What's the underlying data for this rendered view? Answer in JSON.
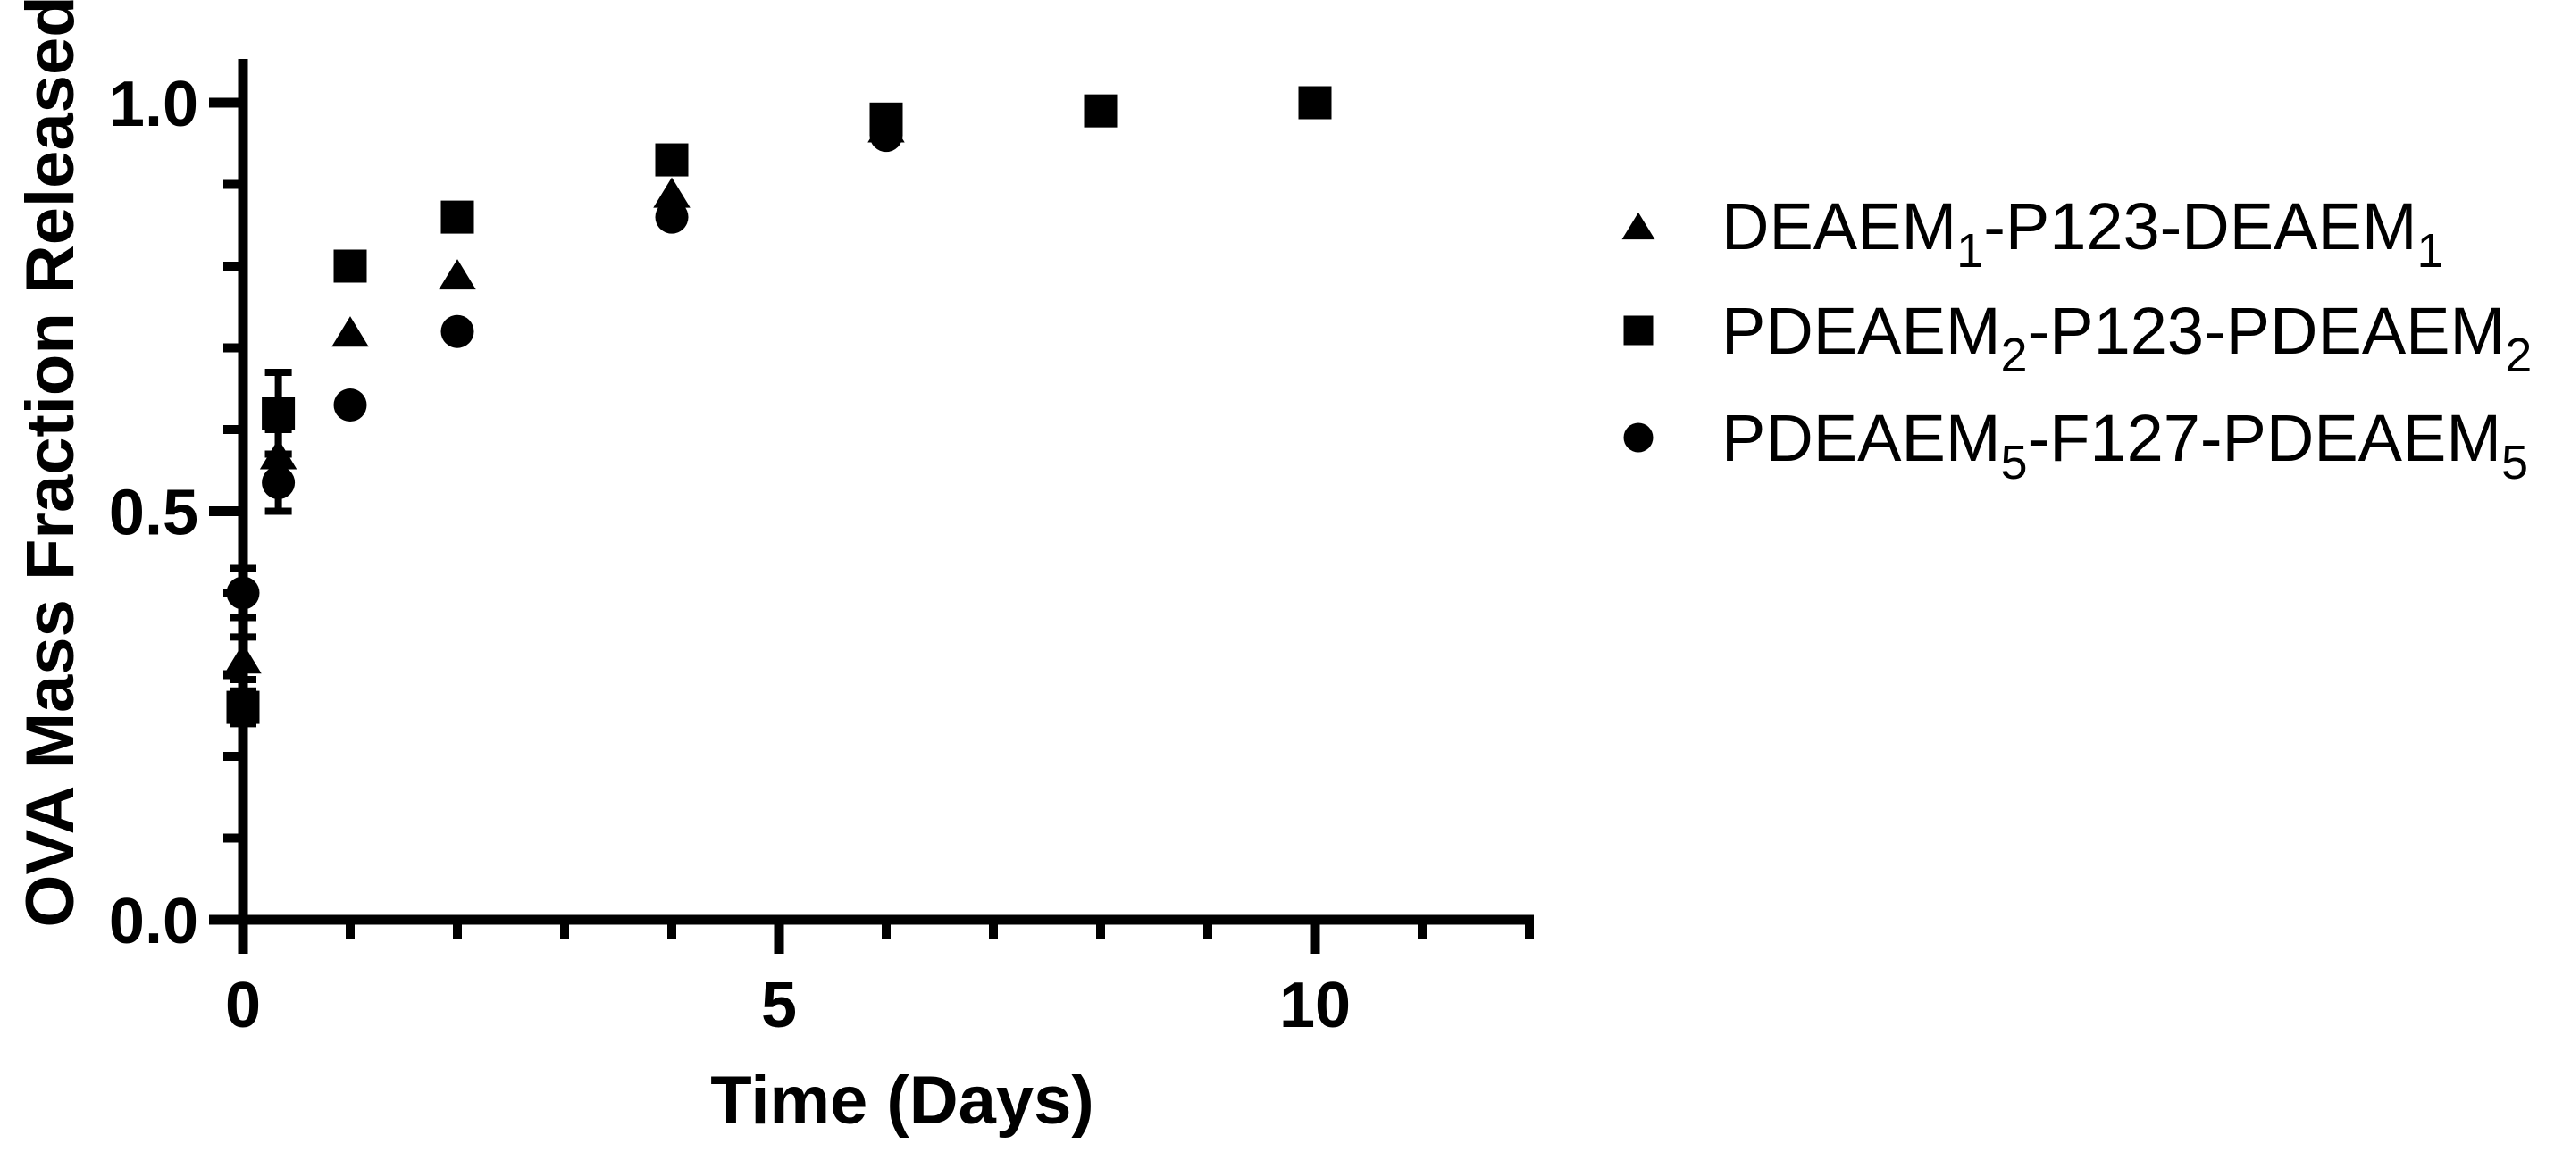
{
  "figure": {
    "background": "#ffffff",
    "description": "Scatter plot of OVA mass fraction released over time for three block copolymer nanogel formulations"
  },
  "chart_data": {
    "type": "scatter",
    "title": "",
    "xlabel": "Time (Days)",
    "ylabel": "OVA Mass Fraction Released",
    "xlim": [
      0,
      12
    ],
    "ylim": [
      0,
      1.07
    ],
    "grid": false,
    "legend_position": "right",
    "axis_color": "#000000",
    "marker_color": "#000000",
    "x_major_ticks": [
      {
        "v": 0,
        "label": "0"
      },
      {
        "v": 5,
        "label": "5"
      },
      {
        "v": 10,
        "label": "10"
      }
    ],
    "x_minor_ticks": [
      1,
      2,
      3,
      4,
      6,
      7,
      8,
      9,
      11,
      12
    ],
    "y_major_ticks": [
      {
        "v": 0.0,
        "label": "0.0"
      },
      {
        "v": 0.5,
        "label": "0.5"
      },
      {
        "v": 1.0,
        "label": "1.0"
      }
    ],
    "y_minor_ticks": [
      0.1,
      0.2,
      0.3,
      0.4,
      0.6,
      0.7,
      0.8,
      0.9
    ],
    "series": [
      {
        "name": "DEAEM1-P123-DEAEM1",
        "marker": "triangle",
        "label_parts": [
          {
            "t": "DEAEM"
          },
          {
            "sub": "1"
          },
          {
            "t": "-P123-DEAEM"
          },
          {
            "sub": "1"
          }
        ],
        "points": [
          {
            "x": 0,
            "y": 0.32,
            "err": 0.026
          },
          {
            "x": 0.33,
            "y": 0.57,
            "err": 0.03
          },
          {
            "x": 1,
            "y": 0.72
          },
          {
            "x": 2,
            "y": 0.79
          },
          {
            "x": 4,
            "y": 0.89
          },
          {
            "x": 6,
            "y": 0.97
          }
        ]
      },
      {
        "name": "PDEAEM5-F127-PDEAEM5",
        "marker": "circle",
        "label_parts": [
          {
            "t": "PDEAEM"
          },
          {
            "sub": "5"
          },
          {
            "t": "-F127-PDEAEM"
          },
          {
            "sub": "5"
          }
        ],
        "points": [
          {
            "x": 0,
            "y": 0.4,
            "err": 0.03
          },
          {
            "x": 0.33,
            "y": 0.535,
            "err": 0.035
          },
          {
            "x": 1,
            "y": 0.63
          },
          {
            "x": 2,
            "y": 0.72
          },
          {
            "x": 4,
            "y": 0.86
          },
          {
            "x": 6,
            "y": 0.96
          }
        ]
      },
      {
        "name": "PDEAEM2-P123-PDEAEM2",
        "marker": "square",
        "label_parts": [
          {
            "t": "PDEAEM"
          },
          {
            "sub": "2"
          },
          {
            "t": "-P123-PDEAEM"
          },
          {
            "sub": "2"
          }
        ],
        "points": [
          {
            "x": 0,
            "y": 0.26,
            "err": 0.02
          },
          {
            "x": 0.33,
            "y": 0.62,
            "err": 0.05
          },
          {
            "x": 1,
            "y": 0.8
          },
          {
            "x": 2,
            "y": 0.86
          },
          {
            "x": 4,
            "y": 0.93
          },
          {
            "x": 6,
            "y": 0.98
          },
          {
            "x": 8,
            "y": 0.99
          },
          {
            "x": 10,
            "y": 1.0
          }
        ]
      }
    ],
    "legend_order": [
      "DEAEM1-P123-DEAEM1",
      "PDEAEM2-P123-PDEAEM2",
      "PDEAEM5-F127-PDEAEM5"
    ]
  }
}
